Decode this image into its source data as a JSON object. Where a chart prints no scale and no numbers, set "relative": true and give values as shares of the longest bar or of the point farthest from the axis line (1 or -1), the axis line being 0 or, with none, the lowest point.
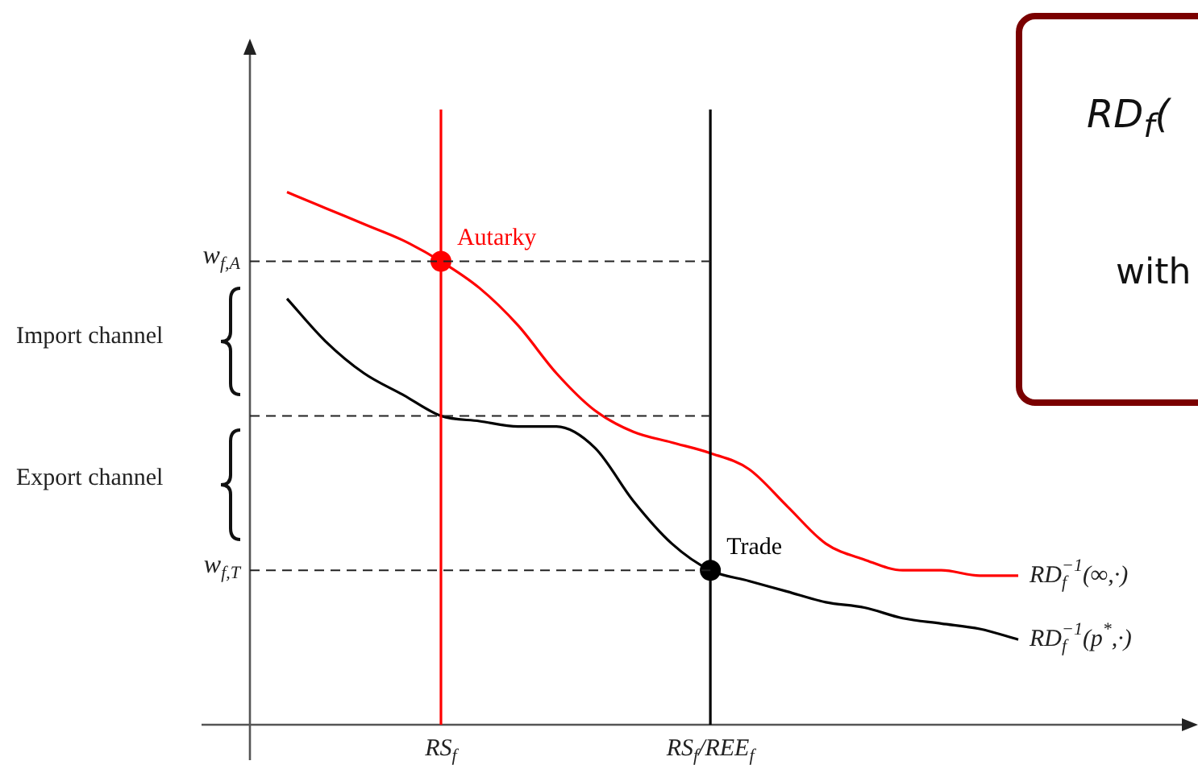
{
  "chart_data": {
    "type": "line",
    "relative": true,
    "marker": "none",
    "line_style": "solid",
    "categories": [
      null,
      null,
      null,
      null,
      "RS$_{f}$",
      null,
      null,
      null,
      null,
      null,
      null,
      "RS$_{f}$/REE$_{f}$",
      null,
      null,
      null,
      null,
      null,
      null,
      null,
      null,
      null,
      null,
      null,
      null
    ],
    "series": [
      {
        "name": "RD$_{f}$$^{−1}$(∞,·)",
        "color": "#ff0000",
        "values": [
          1.0,
          0.97,
          0.94,
          0.91,
          0.87,
          0.82,
          0.75,
          0.66,
          0.59,
          0.55,
          0.53,
          0.51,
          0.48,
          0.41,
          0.34,
          0.31,
          0.29,
          0.29,
          0.28,
          0.28,
          null,
          null,
          null,
          null
        ]
      },
      {
        "name": "RD$_{f}$$^{−1}$(p$^{*}$,·)",
        "color": "#000000",
        "values": [
          0.8,
          0.72,
          0.66,
          0.62,
          0.58,
          0.57,
          0.56,
          0.56,
          0.52,
          0.42,
          0.34,
          0.29,
          0.27,
          0.25,
          0.23,
          0.22,
          0.2,
          0.19,
          0.18,
          0.16,
          null,
          null,
          null,
          null
        ]
      },
      {
        "type": "scatter",
        "marker": "circle",
        "x": [
          "RS$_{f}$",
          "RS$_{f}$/REE$_{f}$"
        ],
        "values": [
          0.87,
          0.29
        ],
        "colors": [
          "#ff0000",
          "#000000"
        ]
      }
    ],
    "ref_lines": [
      {
        "axis": "x",
        "value": "RS$_{f}$",
        "color": "#ff0000"
      },
      {
        "axis": "x",
        "value": "RS$_{f}$/REE$_{f}$",
        "color": "#000000"
      },
      {
        "axis": "y",
        "value": 0.87,
        "label": "w$_{f,A}$",
        "line_style": "dashed"
      },
      {
        "axis": "y",
        "value": 0.58,
        "line_style": "dashed"
      },
      {
        "axis": "y",
        "value": 0.29,
        "label": "w$_{f,T}$",
        "line_style": "dashed"
      }
    ],
    "annotations": [
      {
        "text": "Autarky",
        "x": "RS$_{f}$",
        "y": 0.87
      },
      {
        "text": "Trade",
        "x": "RS$_{f}$/REE$_{f}$",
        "y": 0.29
      },
      "Import channel",
      "Export channel",
      "RD$_{f}$(",
      "with"
    ]
  }
}
